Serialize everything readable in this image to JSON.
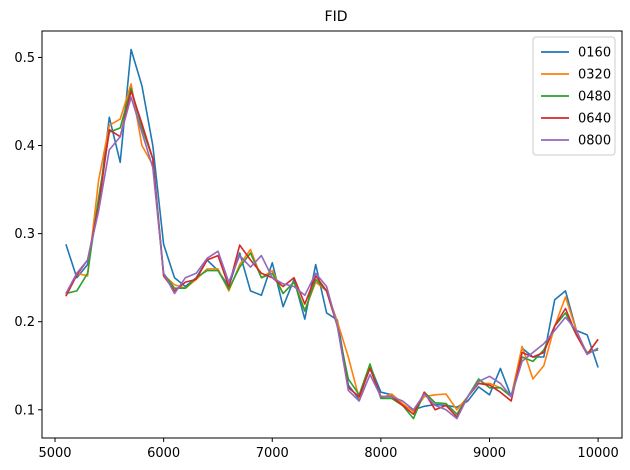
{
  "chart_data": {
    "type": "line",
    "title": "FID",
    "xlabel": "",
    "ylabel": "",
    "xlim": [
      4880,
      10220
    ],
    "ylim": [
      0.068,
      0.53
    ],
    "xticks": [
      5000,
      6000,
      7000,
      8000,
      9000,
      10000
    ],
    "yticks": [
      0.1,
      0.2,
      0.3,
      0.4,
      0.5
    ],
    "xtick_labels": [
      "5000",
      "6000",
      "7000",
      "8000",
      "9000",
      "10000"
    ],
    "ytick_labels": [
      "0.1",
      "0.2",
      "0.3",
      "0.4",
      "0.5"
    ],
    "grid": false,
    "legend_position": "top-right",
    "x": [
      5100,
      5200,
      5300,
      5400,
      5500,
      5600,
      5700,
      5800,
      5900,
      6000,
      6100,
      6200,
      6300,
      6400,
      6500,
      6600,
      6700,
      6800,
      6900,
      7000,
      7100,
      7200,
      7300,
      7400,
      7500,
      7600,
      7700,
      7800,
      7900,
      8000,
      8100,
      8200,
      8300,
      8400,
      8500,
      8600,
      8700,
      8800,
      8900,
      9000,
      9100,
      9200,
      9300,
      9400,
      9500,
      9600,
      9700,
      9800,
      9900,
      10000
    ],
    "series": [
      {
        "name": "0160",
        "color": "#1f77b4",
        "values": [
          0.288,
          0.25,
          0.265,
          0.33,
          0.432,
          0.381,
          0.509,
          0.468,
          0.4,
          0.288,
          0.25,
          0.24,
          0.25,
          0.27,
          0.258,
          0.24,
          0.278,
          0.235,
          0.23,
          0.267,
          0.217,
          0.248,
          0.203,
          0.265,
          0.21,
          0.202,
          0.128,
          0.112,
          0.15,
          0.12,
          0.117,
          0.105,
          0.1,
          0.104,
          0.106,
          0.105,
          0.103,
          0.11,
          0.126,
          0.117,
          0.147,
          0.115,
          0.17,
          0.16,
          0.16,
          0.225,
          0.235,
          0.19,
          0.185,
          0.148
        ]
      },
      {
        "name": "0320",
        "color": "#ff7f0e",
        "values": [
          0.231,
          0.255,
          0.252,
          0.36,
          0.423,
          0.43,
          0.47,
          0.4,
          0.378,
          0.253,
          0.242,
          0.238,
          0.248,
          0.26,
          0.26,
          0.235,
          0.265,
          0.282,
          0.25,
          0.258,
          0.232,
          0.245,
          0.213,
          0.245,
          0.235,
          0.2,
          0.16,
          0.113,
          0.15,
          0.113,
          0.118,
          0.107,
          0.098,
          0.115,
          0.117,
          0.118,
          0.1,
          0.115,
          0.13,
          0.13,
          0.125,
          0.115,
          0.172,
          0.135,
          0.15,
          0.195,
          0.228,
          0.19,
          0.163,
          0.18
        ]
      },
      {
        "name": "0480",
        "color": "#2ca02c",
        "values": [
          0.232,
          0.235,
          0.255,
          0.34,
          0.415,
          0.42,
          0.465,
          0.42,
          0.385,
          0.255,
          0.238,
          0.238,
          0.25,
          0.258,
          0.258,
          0.237,
          0.262,
          0.278,
          0.25,
          0.255,
          0.232,
          0.245,
          0.212,
          0.248,
          0.235,
          0.195,
          0.135,
          0.117,
          0.152,
          0.113,
          0.113,
          0.105,
          0.09,
          0.12,
          0.108,
          0.107,
          0.095,
          0.115,
          0.135,
          0.125,
          0.125,
          0.115,
          0.16,
          0.155,
          0.168,
          0.195,
          0.21,
          0.185,
          0.165,
          0.168
        ]
      },
      {
        "name": "0640",
        "color": "#d62728",
        "values": [
          0.229,
          0.253,
          0.27,
          0.33,
          0.418,
          0.41,
          0.462,
          0.425,
          0.385,
          0.252,
          0.235,
          0.245,
          0.248,
          0.27,
          0.275,
          0.24,
          0.287,
          0.27,
          0.255,
          0.25,
          0.24,
          0.25,
          0.22,
          0.252,
          0.235,
          0.195,
          0.125,
          0.115,
          0.147,
          0.115,
          0.115,
          0.105,
          0.095,
          0.12,
          0.1,
          0.105,
          0.092,
          0.115,
          0.13,
          0.128,
          0.12,
          0.11,
          0.165,
          0.16,
          0.165,
          0.195,
          0.215,
          0.185,
          0.163,
          0.18
        ]
      },
      {
        "name": "0800",
        "color": "#9467bd",
        "values": [
          0.232,
          0.255,
          0.27,
          0.325,
          0.395,
          0.41,
          0.455,
          0.415,
          0.375,
          0.255,
          0.232,
          0.25,
          0.255,
          0.272,
          0.28,
          0.245,
          0.275,
          0.262,
          0.275,
          0.25,
          0.243,
          0.24,
          0.23,
          0.255,
          0.24,
          0.195,
          0.122,
          0.11,
          0.14,
          0.115,
          0.115,
          0.11,
          0.1,
          0.118,
          0.105,
          0.1,
          0.09,
          0.115,
          0.132,
          0.138,
          0.13,
          0.115,
          0.155,
          0.165,
          0.175,
          0.19,
          0.205,
          0.19,
          0.163,
          0.17
        ]
      }
    ]
  }
}
